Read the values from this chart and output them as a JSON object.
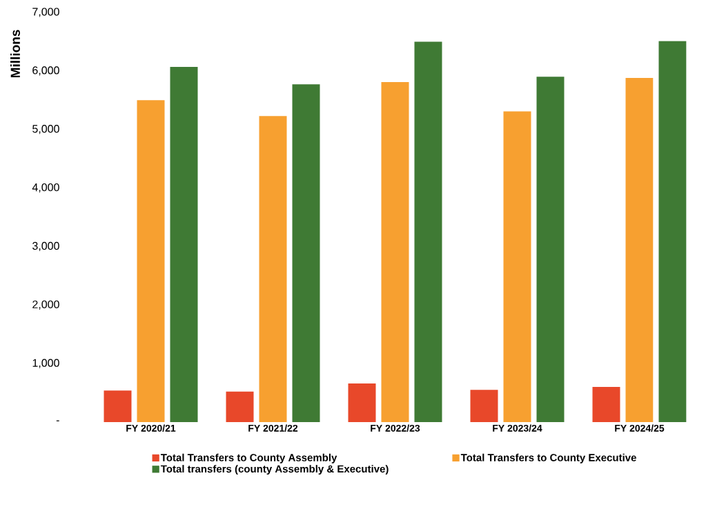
{
  "chart_data": {
    "type": "bar",
    "ylabel": "Millions",
    "categories": [
      "FY 2020/21",
      "FY 2021/22",
      "FY 2022/23",
      "FY 2023/24",
      "FY 2024/25"
    ],
    "series": [
      {
        "name": "Total Transfers to County Assembly",
        "color": "#e8482a",
        "values": [
          540,
          520,
          660,
          550,
          600
        ]
      },
      {
        "name": "Total Transfers to County Executive",
        "color": "#f7a030",
        "values": [
          5500,
          5230,
          5810,
          5310,
          5880
        ]
      },
      {
        "name": "Total transfers (county Assembly & Executive)",
        "color": "#3f7a34",
        "values": [
          6070,
          5770,
          6500,
          5900,
          6510
        ]
      }
    ],
    "ylim": [
      0,
      7000
    ],
    "yticks": [
      {
        "value": 0,
        "label": "-"
      },
      {
        "value": 1000,
        "label": "1,000"
      },
      {
        "value": 2000,
        "label": "2,000"
      },
      {
        "value": 3000,
        "label": "3,000"
      },
      {
        "value": 4000,
        "label": "4,000"
      },
      {
        "value": 5000,
        "label": "5,000"
      },
      {
        "value": 6000,
        "label": "6,000"
      },
      {
        "value": 7000,
        "label": "7,000"
      }
    ],
    "grid": false,
    "legend": "bottom"
  }
}
